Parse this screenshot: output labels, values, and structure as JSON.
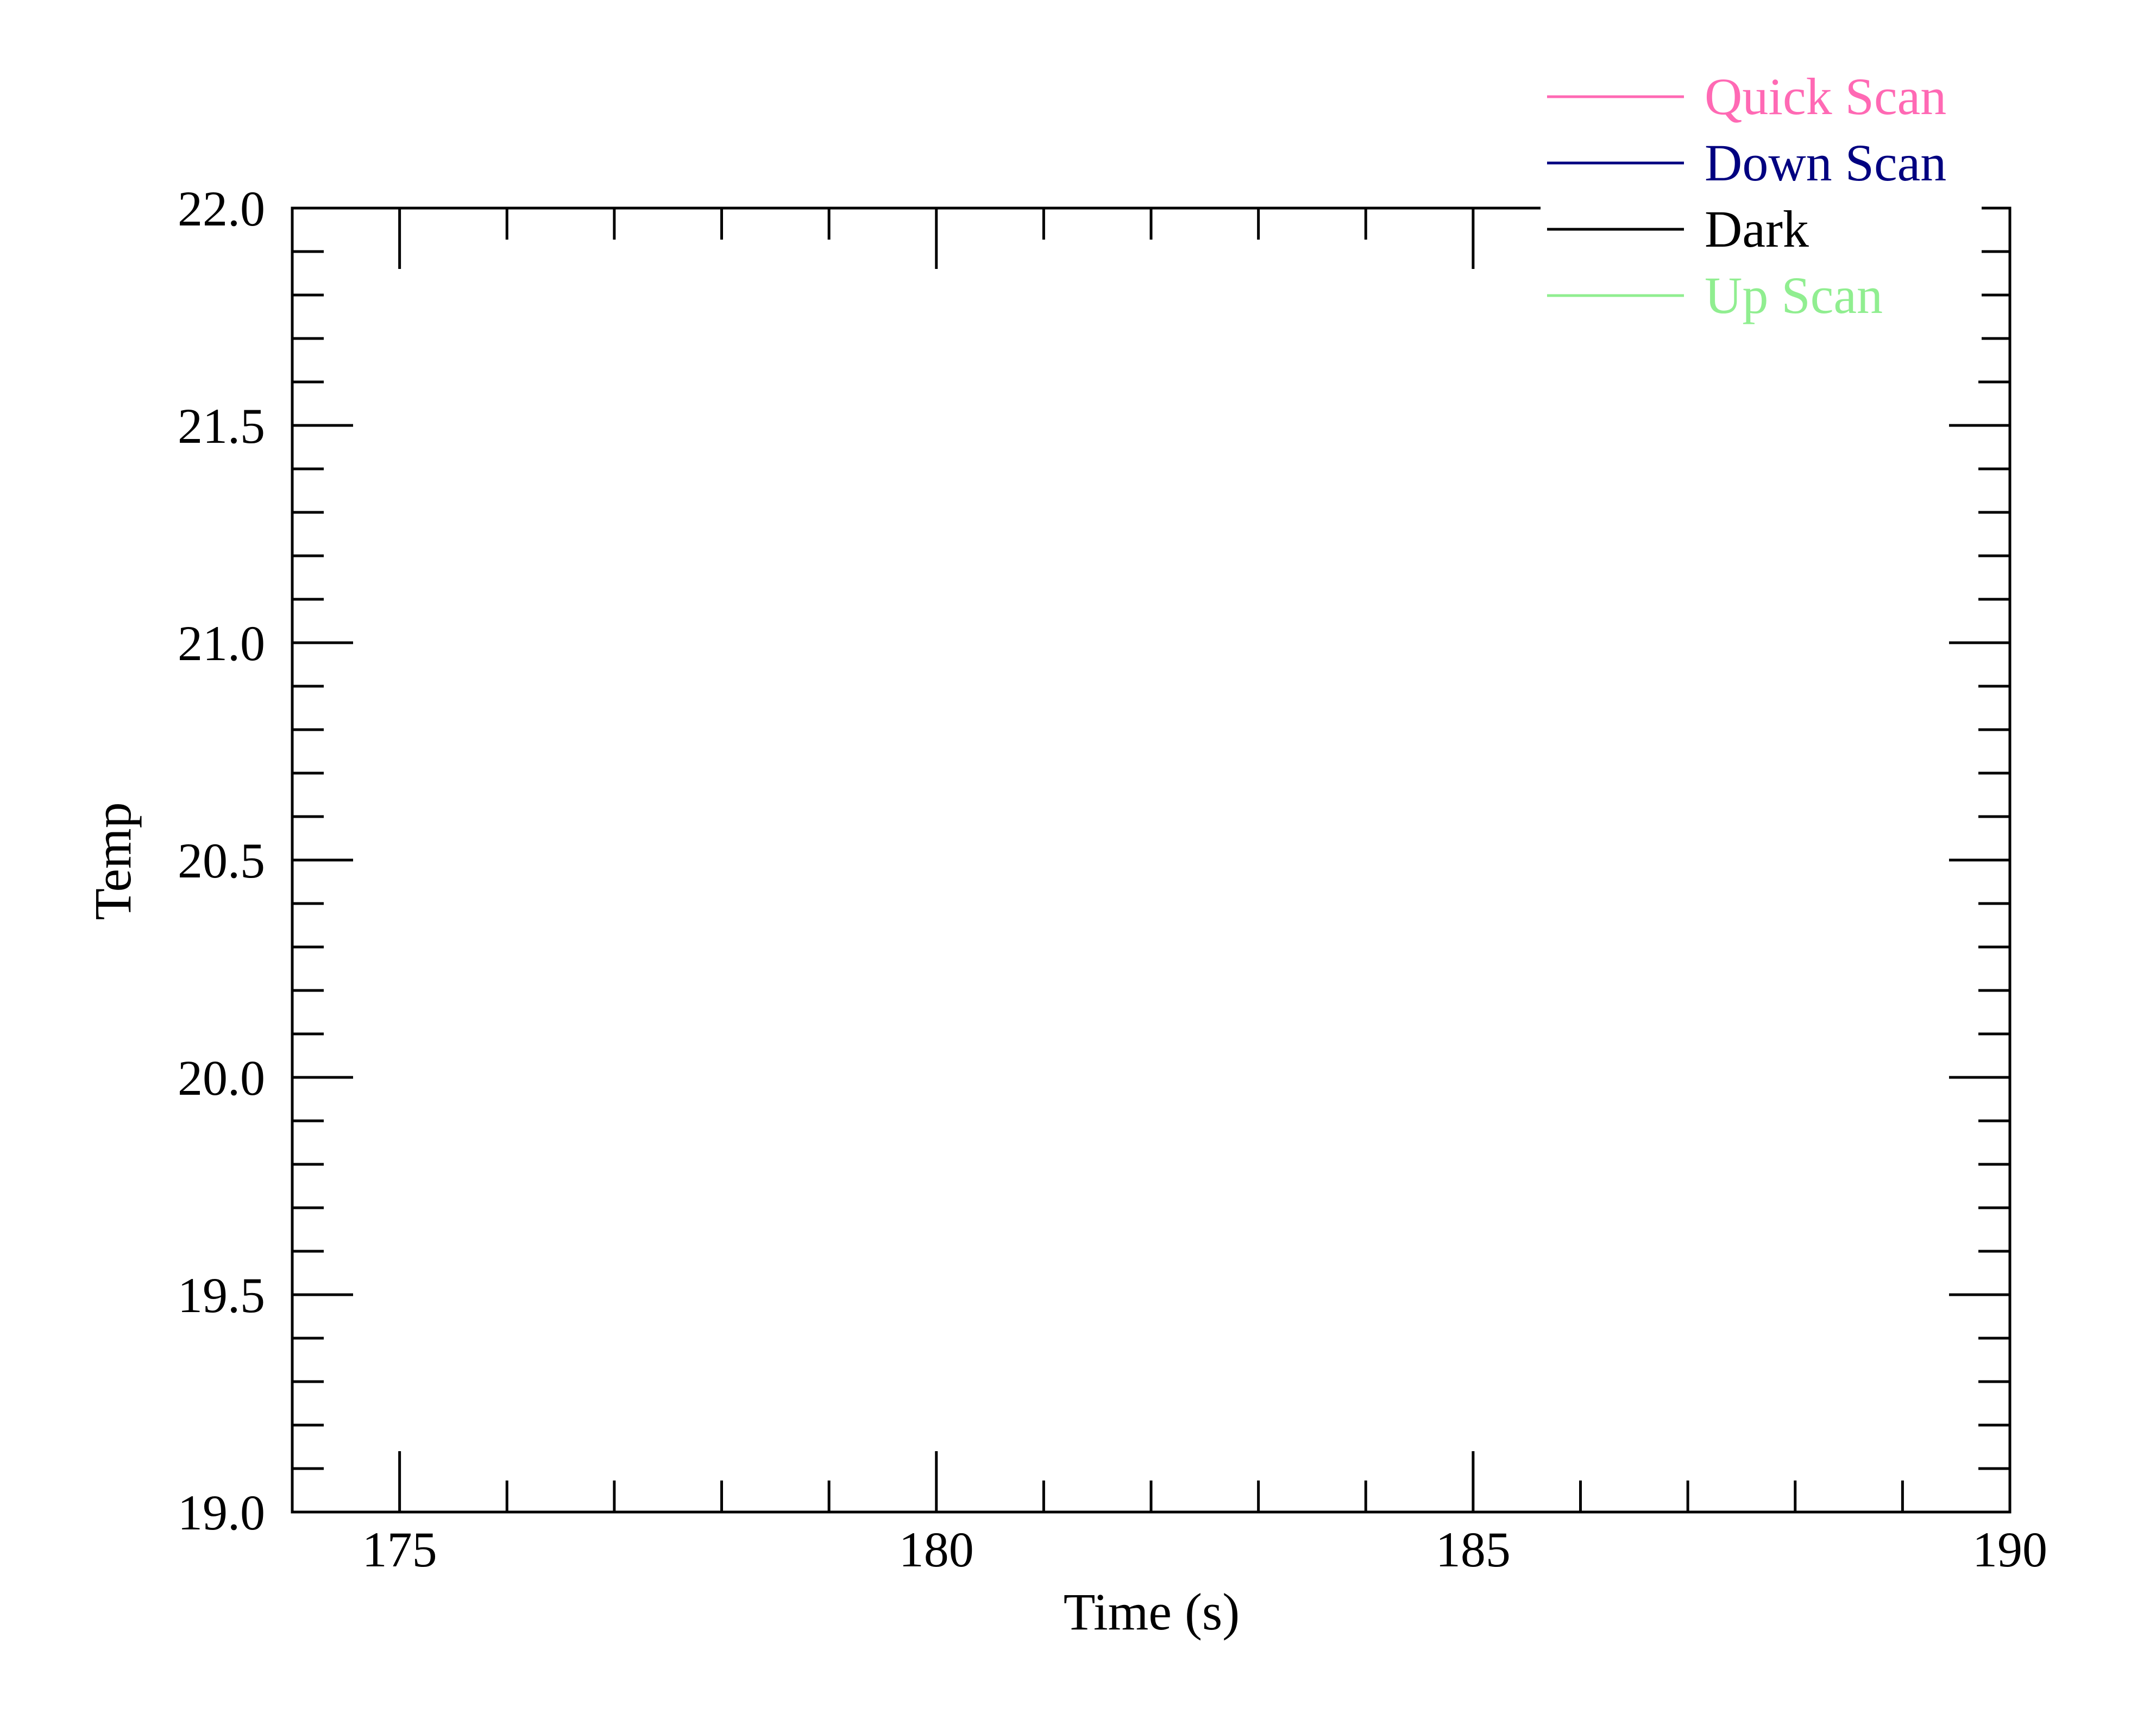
{
  "chart_data": {
    "type": "line",
    "xlabel": "Time (s)",
    "ylabel": "Temp",
    "xlim": [
      174,
      190
    ],
    "ylim": [
      19.0,
      22.0
    ],
    "x_ticks": [
      175,
      180,
      185,
      190
    ],
    "x_tick_labels": [
      "175",
      "180",
      "185",
      "190"
    ],
    "y_ticks": [
      19.0,
      19.5,
      20.0,
      20.5,
      21.0,
      21.5,
      22.0
    ],
    "y_tick_labels": [
      "19.0",
      "19.5",
      "20.0",
      "20.5",
      "21.0",
      "21.5",
      "22.0"
    ],
    "x_minor_step": 1,
    "y_minor_step": 0.1,
    "grid": false,
    "legend_position": "top-right",
    "series": [
      {
        "name": "Quick Scan",
        "color": "#ff69b4",
        "x": [],
        "y": []
      },
      {
        "name": "Down Scan",
        "color": "#000080",
        "x": [],
        "y": []
      },
      {
        "name": "Dark",
        "color": "#000000",
        "x": [],
        "y": []
      },
      {
        "name": "Up Scan",
        "color": "#90ee90",
        "x": [],
        "y": []
      }
    ]
  }
}
